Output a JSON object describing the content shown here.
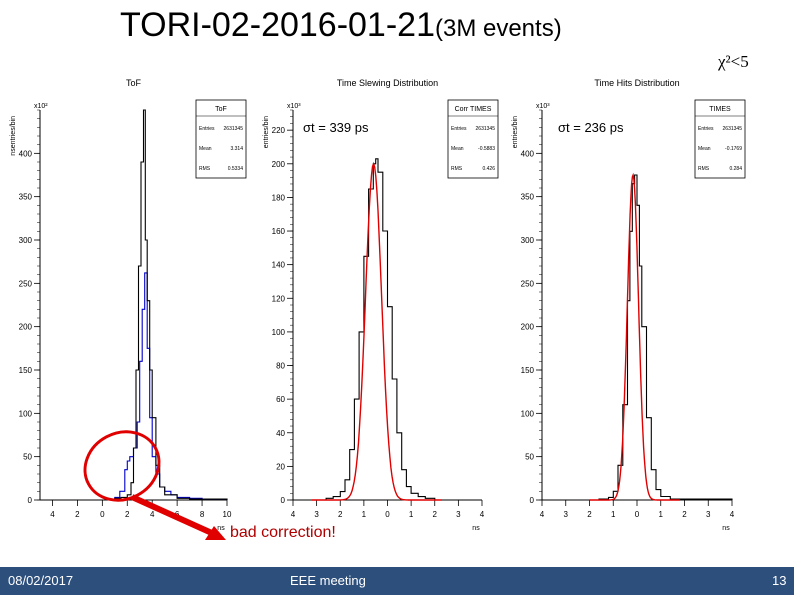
{
  "slide": {
    "title_main": "TORI-02-2016-01-21",
    "title_sub": "(3M events)",
    "chi_cut": "χ²<5",
    "annotation": "bad correction!",
    "footer": {
      "date": "08/02/2017",
      "meeting": "EEE meeting",
      "page": "13"
    }
  },
  "colors": {
    "blue": "#0000cc",
    "red": "#e00000",
    "black": "#000000",
    "annotation": "#b00000",
    "footer": "#2d4f7c"
  },
  "chart_data": [
    {
      "type": "histogram",
      "title": "ToF",
      "ylabel": "nsentries/bin",
      "xlabel": "ns",
      "y_multiplier": "x10²",
      "xlim": [
        -5,
        10
      ],
      "ylim": [
        0,
        450
      ],
      "x_ticks": [
        -4,
        -2,
        0,
        2,
        4,
        6,
        8,
        10
      ],
      "x_tick_labels": [
        "4",
        "2",
        "0",
        "2",
        "4",
        "6",
        "8",
        "10"
      ],
      "y_ticks": [
        0,
        50,
        100,
        150,
        200,
        250,
        300,
        350,
        400
      ],
      "stats": {
        "name": "ToF",
        "entries": "2631345",
        "mean": "3.314",
        "rms": "0.5334"
      },
      "series": [
        {
          "color": "#0000cc",
          "x": [
            -5,
            0.5,
            1.0,
            1.4,
            1.8,
            2.0,
            2.2,
            2.5,
            2.8,
            3.0,
            3.2,
            3.4,
            3.6,
            3.8,
            4.0,
            4.3,
            4.6,
            5.0,
            5.5,
            6.0,
            7.0,
            8.0,
            10.0
          ],
          "y": [
            0,
            1,
            3,
            10,
            35,
            45,
            50,
            60,
            90,
            160,
            220,
            262,
            175,
            95,
            50,
            30,
            15,
            10,
            6,
            3,
            2,
            1,
            0
          ]
        },
        {
          "color": "#000000",
          "x": [
            -5,
            0.5,
            1.0,
            1.5,
            2.0,
            2.3,
            2.5,
            2.7,
            2.9,
            3.1,
            3.3,
            3.45,
            3.6,
            3.8,
            4.0,
            4.3,
            4.6,
            5.0,
            6.0,
            7.0,
            10.0
          ],
          "y": [
            0,
            1,
            2,
            3,
            6,
            20,
            60,
            150,
            270,
            390,
            450,
            300,
            230,
            150,
            95,
            40,
            15,
            6,
            2,
            1,
            0
          ]
        }
      ]
    },
    {
      "type": "histogram",
      "title": "Time Slewing Distribution",
      "ylabel": "entries/bin",
      "xlabel": "ns",
      "y_multiplier": "x10³",
      "xlim": [
        -4,
        4
      ],
      "ylim": [
        0,
        232
      ],
      "x_ticks": [
        -4,
        -3,
        -2,
        -1,
        0,
        1,
        2,
        3,
        4
      ],
      "x_tick_labels": [
        "4",
        "3",
        "2",
        "1",
        "0",
        "1",
        "2",
        "3",
        "4"
      ],
      "y_ticks": [
        0,
        20,
        40,
        60,
        80,
        100,
        120,
        140,
        160,
        180,
        200,
        220
      ],
      "stats": {
        "name": "Corr TIMES",
        "entries": "2631345",
        "mean": "-0.5883",
        "rms": "0.426"
      },
      "sigma_label": "σt = 339 ps",
      "series": [
        {
          "color": "#000000",
          "x": [
            -4,
            -2.6,
            -2.3,
            -2.0,
            -1.8,
            -1.6,
            -1.4,
            -1.2,
            -1.0,
            -0.8,
            -0.6,
            -0.5,
            -0.4,
            -0.2,
            0.0,
            0.2,
            0.4,
            0.6,
            0.8,
            1.0,
            1.3,
            1.6,
            2.0,
            4.0
          ],
          "y": [
            0,
            1,
            2,
            5,
            12,
            30,
            60,
            100,
            145,
            185,
            200,
            203,
            195,
            160,
            115,
            72,
            40,
            18,
            8,
            4,
            2,
            1,
            0,
            0
          ]
        },
        {
          "color": "#e00000",
          "mu": -0.59,
          "sigma": 0.34,
          "amp": 200,
          "x0": -3.2,
          "x1": 2.3
        }
      ]
    },
    {
      "type": "histogram",
      "title": "Time Hits Distribution",
      "ylabel": "entries/bin",
      "xlabel": "ns",
      "y_multiplier": "x10³",
      "xlim": [
        -4,
        4
      ],
      "ylim": [
        0,
        450
      ],
      "x_ticks": [
        -4,
        -3,
        -2,
        -1,
        0,
        1,
        2,
        3,
        4
      ],
      "x_tick_labels": [
        "4",
        "3",
        "2",
        "1",
        "0",
        "1",
        "2",
        "3",
        "4"
      ],
      "y_ticks": [
        0,
        50,
        100,
        150,
        200,
        250,
        300,
        350,
        400
      ],
      "stats": {
        "name": "TIMES",
        "entries": "2631345",
        "mean": "-0.1769",
        "rms": "0.284"
      },
      "sigma_label": "σt = 236 ps",
      "series": [
        {
          "color": "#000000",
          "x": [
            -4,
            -1.6,
            -1.2,
            -1.0,
            -0.8,
            -0.6,
            -0.4,
            -0.3,
            -0.2,
            -0.1,
            0.0,
            0.1,
            0.2,
            0.4,
            0.6,
            0.8,
            1.0,
            1.4,
            4.0
          ],
          "y": [
            0,
            1,
            3,
            10,
            40,
            110,
            230,
            310,
            365,
            375,
            340,
            270,
            200,
            95,
            35,
            12,
            4,
            1,
            0
          ]
        },
        {
          "color": "#e00000",
          "mu": -0.17,
          "sigma": 0.236,
          "amp": 375,
          "x0": -2.0,
          "x1": 1.8
        }
      ]
    }
  ]
}
